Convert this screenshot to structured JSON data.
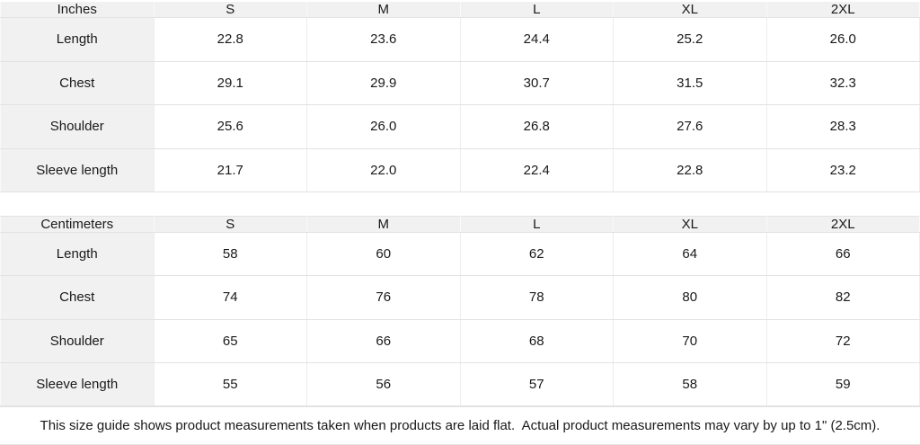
{
  "tables": [
    {
      "unit_label": "Inches",
      "sizes": [
        "S",
        "M",
        "L",
        "XL",
        "2XL"
      ],
      "rows": [
        {
          "label": "Length",
          "values": [
            "22.8",
            "23.6",
            "24.4",
            "25.2",
            "26.0"
          ]
        },
        {
          "label": "Chest",
          "values": [
            "29.1",
            "29.9",
            "30.7",
            "31.5",
            "32.3"
          ]
        },
        {
          "label": "Shoulder",
          "values": [
            "25.6",
            "26.0",
            "26.8",
            "27.6",
            "28.3"
          ]
        },
        {
          "label": "Sleeve length",
          "values": [
            "21.7",
            "22.0",
            "22.4",
            "22.8",
            "23.2"
          ]
        }
      ]
    },
    {
      "unit_label": "Centimeters",
      "sizes": [
        "S",
        "M",
        "L",
        "XL",
        "2XL"
      ],
      "rows": [
        {
          "label": "Length",
          "values": [
            "58",
            "60",
            "62",
            "64",
            "66"
          ]
        },
        {
          "label": "Chest",
          "values": [
            "74",
            "76",
            "78",
            "80",
            "82"
          ]
        },
        {
          "label": "Shoulder",
          "values": [
            "65",
            "66",
            "68",
            "70",
            "72"
          ]
        },
        {
          "label": "Sleeve length",
          "values": [
            "55",
            "56",
            "57",
            "58",
            "59"
          ]
        }
      ]
    }
  ],
  "footer": {
    "note": "This size guide shows product measurements taken when products are laid flat.  Actual product measurements may vary by up to 1\" (2.5cm)."
  },
  "colors": {
    "header_bg": "#f1f1f1",
    "row_border": "#e2e2e2",
    "column_border": "#ededed",
    "text": "#191919",
    "cell_bg": "#ffffff"
  }
}
